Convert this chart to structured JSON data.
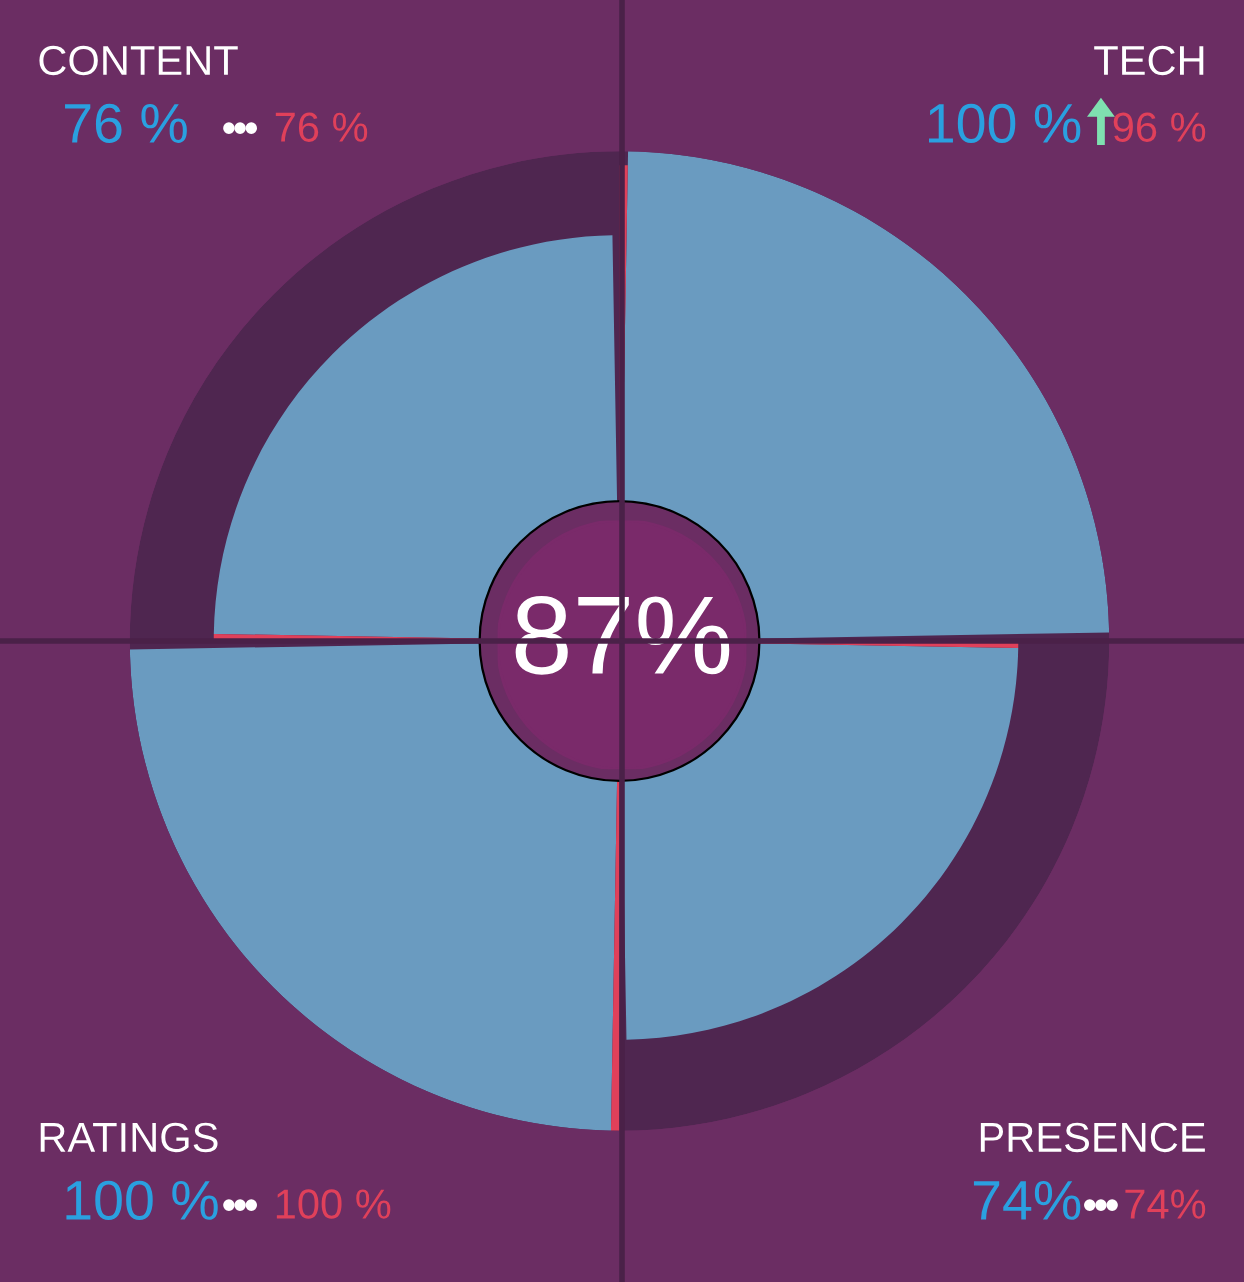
{
  "chart_data": {
    "type": "other",
    "categories": [
      "CONTENT",
      "TECH",
      "RATINGS",
      "PRESENCE"
    ],
    "series": [
      {
        "color": "#6a9bc0",
        "values": [
          76,
          100,
          100,
          74
        ],
        "value_labels": [
          "76 %",
          "100 %",
          "100 %",
          "74%"
        ]
      },
      {
        "color": "#e0405a",
        "values": [
          76,
          96,
          100,
          74
        ],
        "value_labels": [
          "76 %",
          "96 %",
          "100 %",
          "74%"
        ]
      }
    ],
    "annotations": [
      "87%"
    ]
  }
}
